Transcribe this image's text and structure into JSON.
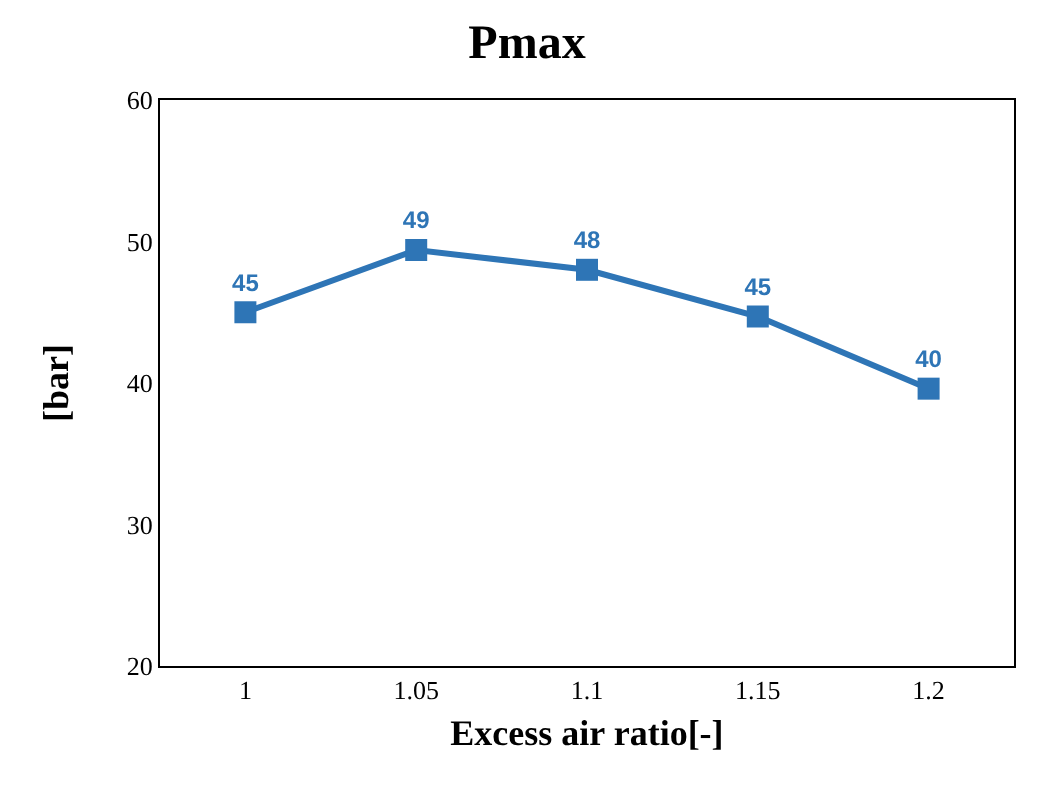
{
  "chart_data": {
    "type": "line",
    "title": "Pmax",
    "xlabel": "Excess air ratio[-]",
    "ylabel": "[bar]",
    "categories": [
      "1",
      "1.05",
      "1.1",
      "1.15",
      "1.2"
    ],
    "series": [
      {
        "color": "#2e75b6",
        "values": [
          45,
          49.4,
          48,
          44.7,
          39.6
        ],
        "value_labels": [
          "45",
          "49",
          "48",
          "45",
          "40"
        ]
      }
    ],
    "ylim": [
      20,
      60
    ],
    "yticks": [
      20,
      30,
      40,
      50,
      60
    ],
    "grid": false,
    "legend": false,
    "marker": "square",
    "line_style": "solid"
  }
}
